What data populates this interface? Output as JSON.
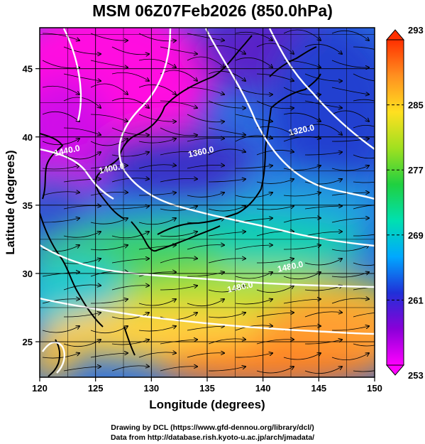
{
  "title": "MSM 06Z07Feb2026 (850.0hPa)",
  "map": {
    "xlabel": "Longitude (degrees)",
    "ylabel": "Latitude  (degrees)",
    "lon_range": [
      120,
      150
    ],
    "lat_range": [
      22.4,
      48
    ],
    "lon_ticks": [
      120,
      125,
      130,
      135,
      140,
      145,
      150
    ],
    "lat_ticks": [
      25,
      30,
      35,
      40,
      45
    ],
    "gridlines": true
  },
  "colorbar": {
    "range": [
      253,
      293
    ],
    "tick_labels": [
      "293",
      "285",
      "277",
      "269",
      "261",
      "253"
    ],
    "tick_values": [
      293,
      285,
      277,
      269,
      261,
      253
    ],
    "colors": [
      "#ff00ff",
      "#8a00d8",
      "#2030d8",
      "#00a8ff",
      "#00e0b0",
      "#20d040",
      "#a0e020",
      "#ffe020",
      "#ff9020",
      "#ff3000"
    ]
  },
  "contours": [
    {
      "label": "1320.0",
      "lon": 143.5,
      "lat": 40.3
    },
    {
      "label": "1360.0",
      "lon": 134.5,
      "lat": 38.7
    },
    {
      "label": "1400.0",
      "lon": 126.5,
      "lat": 37.5
    },
    {
      "label": "1440.0",
      "lon": 122.5,
      "lat": 38.8
    },
    {
      "label": "1480.0",
      "lon": 138.0,
      "lat": 28.8
    },
    {
      "label": "1480.0",
      "lon": 142.5,
      "lat": 30.3
    }
  ],
  "credits": {
    "line1": "Drawing by DCL (https://www.gfd-dennou.org/library/dcl/)",
    "line2": "Data from http://database.rish.kyoto-u.ac.jp/arch/jmadata/"
  }
}
